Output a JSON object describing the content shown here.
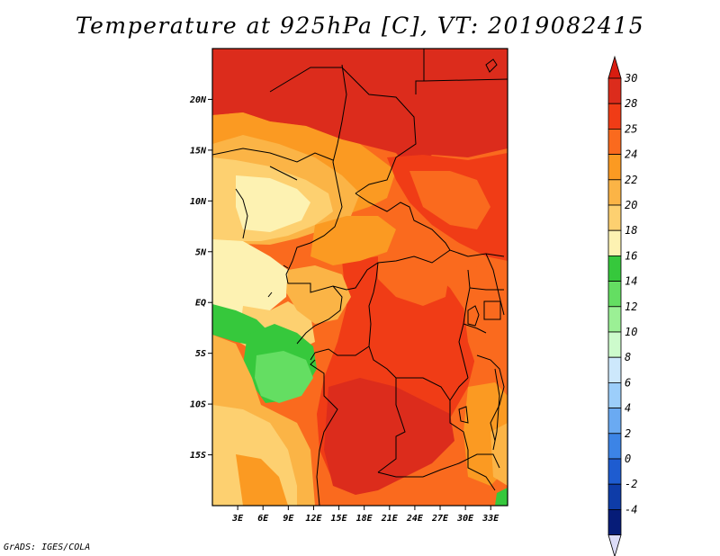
{
  "title": "Temperature at 925hPa [C], VT: 2019082415",
  "credit": "GrADS: IGES/COLA",
  "map": {
    "lon_range": [
      0,
      35
    ],
    "lat_range": [
      -20,
      25
    ],
    "lat_ticks": [
      {
        "value": 20,
        "label": "20N"
      },
      {
        "value": 15,
        "label": "15N"
      },
      {
        "value": 10,
        "label": "10N"
      },
      {
        "value": 5,
        "label": "5N"
      },
      {
        "value": 0,
        "label": "EQ"
      },
      {
        "value": -5,
        "label": "5S"
      },
      {
        "value": -10,
        "label": "10S"
      },
      {
        "value": -15,
        "label": "15S"
      }
    ],
    "lon_ticks": [
      {
        "value": 3,
        "label": "3E"
      },
      {
        "value": 6,
        "label": "6E"
      },
      {
        "value": 9,
        "label": "9E"
      },
      {
        "value": 12,
        "label": "12E"
      },
      {
        "value": 15,
        "label": "15E"
      },
      {
        "value": 18,
        "label": "18E"
      },
      {
        "value": 21,
        "label": "21E"
      },
      {
        "value": 24,
        "label": "24E"
      },
      {
        "value": 27,
        "label": "27E"
      },
      {
        "value": 30,
        "label": "30E"
      },
      {
        "value": 33,
        "label": "33E"
      }
    ]
  },
  "colorbar": {
    "levels": [
      {
        "label": "30",
        "color": "#dc2c1c"
      },
      {
        "label": "28",
        "color": "#f03c16"
      },
      {
        "label": "25",
        "color": "#fa6a1e"
      },
      {
        "label": "24",
        "color": "#fb9a22"
      },
      {
        "label": "22",
        "color": "#fbb446"
      },
      {
        "label": "20",
        "color": "#fdd070"
      },
      {
        "label": "18",
        "color": "#fdf2b2"
      },
      {
        "label": "16",
        "color": "#36c83c"
      },
      {
        "label": "14",
        "color": "#64de62"
      },
      {
        "label": "12",
        "color": "#9bf095"
      },
      {
        "label": "10",
        "color": "#cdfbcc"
      },
      {
        "label": "8",
        "color": "#cde8fc"
      },
      {
        "label": "6",
        "color": "#9ccefa"
      },
      {
        "label": "4",
        "color": "#6aaaf2"
      },
      {
        "label": "2",
        "color": "#3c84e6"
      },
      {
        "label": "0",
        "color": "#1e5cd0"
      },
      {
        "label": "-2",
        "color": "#0e3ca8"
      },
      {
        "label": "-4",
        "color": "#061c78"
      }
    ],
    "top_color": "#d81c10",
    "bottom_color": "#dcdcf8"
  }
}
